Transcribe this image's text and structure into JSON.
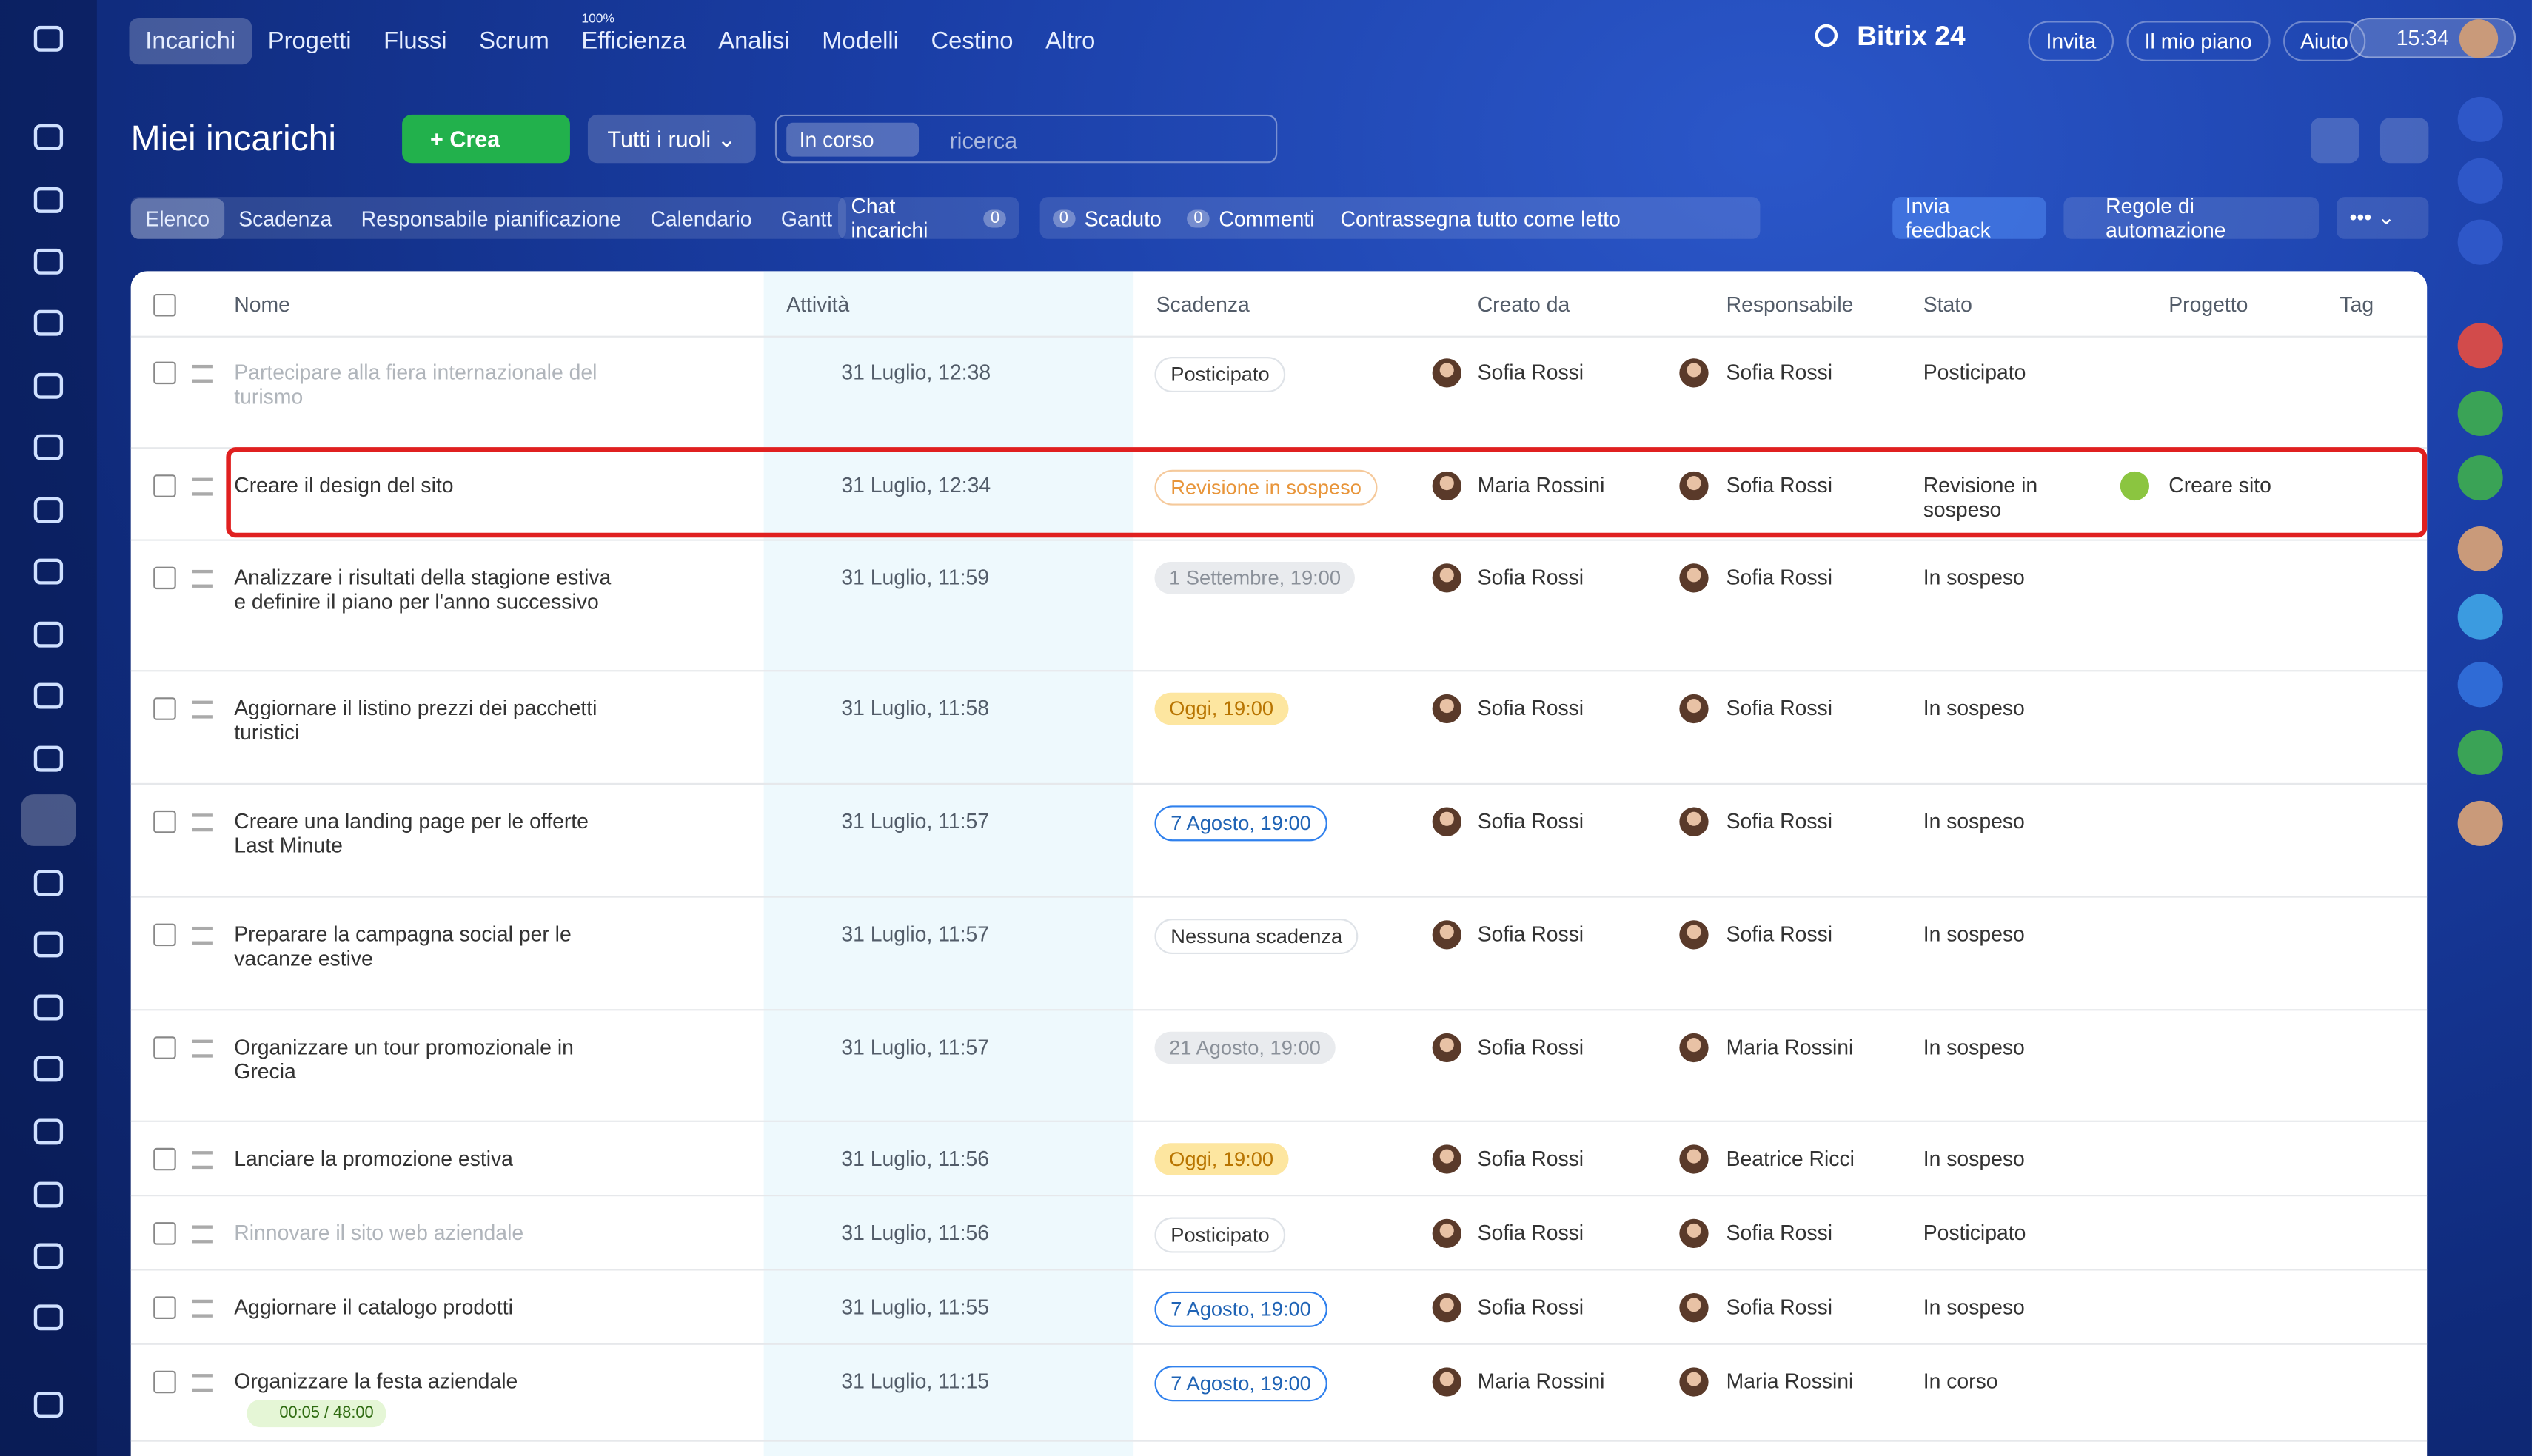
{
  "top_nav": {
    "items": [
      "Incarichi",
      "Progetti",
      "Flussi",
      "Scrum",
      "Efficienza",
      "Analisi",
      "Modelli",
      "Cestino",
      "Altro"
    ],
    "efficiency_badge": "100%",
    "brand": "Bitrix 24",
    "buttons": [
      "Invita",
      "Il mio piano",
      "Aiuto"
    ],
    "time": "15:34"
  },
  "header": {
    "title": "Miei incarichi",
    "create": "Crea",
    "roles": "Tutti i ruoli",
    "filter": "In corso",
    "search_placeholder": "ricerca"
  },
  "tabs": {
    "views": [
      "Elenco",
      "Scadenza",
      "Responsabile pianificazione",
      "Calendario",
      "Gantt"
    ],
    "chat": "Chat incarichi",
    "chat_count": 0,
    "expired_count": 0,
    "expired": "Scaduto",
    "comments_count": 0,
    "comments": "Commenti",
    "mark_read": "Contrassegna tutto come letto",
    "feedback": "Invia feedback",
    "automation": "Regole di automazione"
  },
  "table": {
    "columns": [
      "Nome",
      "Attività",
      "Scadenza",
      "Creato da",
      "Responsabile",
      "Stato",
      "Progetto",
      "Tag"
    ],
    "rows": [
      {
        "name": "Partecipare alla fiera internazionale del turismo",
        "activity": "31 Luglio, 12:38",
        "deadline": "Posticipato",
        "deadline_kind": "neutral",
        "created_by": "Sofia Rossi",
        "responsible": "Sofia Rossi",
        "status": "Posticipato",
        "muted": true
      },
      {
        "name": "Creare il design del sito",
        "activity": "31 Luglio, 12:34",
        "deadline": "Revisione in sospeso",
        "deadline_kind": "warning",
        "created_by": "Maria Rossini",
        "responsible": "Sofia Rossi",
        "status": "Revisione in sospeso",
        "project": "Creare sito",
        "highlighted": true
      },
      {
        "name": "Analizzare i risultati della stagione estiva e definire il piano per l'anno successivo",
        "activity": "31 Luglio, 11:59",
        "deadline": "1 Settembre, 19:00",
        "deadline_kind": "past",
        "created_by": "Sofia Rossi",
        "responsible": "Sofia Rossi",
        "status": "In sospeso"
      },
      {
        "name": "Aggiornare il listino prezzi dei pacchetti turistici",
        "activity": "31 Luglio, 11:58",
        "deadline": "Oggi, 19:00",
        "deadline_kind": "today",
        "created_by": "Sofia Rossi",
        "responsible": "Sofia Rossi",
        "status": "In sospeso"
      },
      {
        "name": "Creare una landing page per le offerte Last Minute",
        "activity": "31 Luglio, 11:57",
        "deadline": "7 Agosto, 19:00",
        "deadline_kind": "future",
        "created_by": "Sofia Rossi",
        "responsible": "Sofia Rossi",
        "status": "In sospeso"
      },
      {
        "name": "Preparare la campagna social per le vacanze estive",
        "activity": "31 Luglio, 11:57",
        "deadline": "Nessuna scadenza",
        "deadline_kind": "neutral",
        "created_by": "Sofia Rossi",
        "responsible": "Sofia Rossi",
        "status": "In sospeso"
      },
      {
        "name": "Organizzare un tour promozionale in Grecia",
        "activity": "31 Luglio, 11:57",
        "deadline": "21 Agosto, 19:00",
        "deadline_kind": "past",
        "created_by": "Sofia Rossi",
        "responsible": "Maria Rossini",
        "status": "In sospeso"
      },
      {
        "name": "Lanciare la promozione estiva",
        "activity": "31 Luglio, 11:56",
        "deadline": "Oggi, 19:00",
        "deadline_kind": "today",
        "created_by": "Sofia Rossi",
        "responsible": "Beatrice Ricci",
        "status": "In sospeso"
      },
      {
        "name": "Rinnovare il sito web aziendale",
        "activity": "31 Luglio, 11:56",
        "deadline": "Posticipato",
        "deadline_kind": "neutral",
        "created_by": "Sofia Rossi",
        "responsible": "Sofia Rossi",
        "status": "Posticipato",
        "muted": true
      },
      {
        "name": "Aggiornare il catalogo prodotti",
        "activity": "31 Luglio, 11:55",
        "deadline": "7 Agosto, 19:00",
        "deadline_kind": "future",
        "created_by": "Sofia Rossi",
        "responsible": "Sofia Rossi",
        "status": "In sospeso"
      },
      {
        "name": "Organizzare la festa aziendale",
        "activity": "31 Luglio, 11:15",
        "deadline": "7 Agosto, 19:00",
        "deadline_kind": "future",
        "created_by": "Maria Rossini",
        "responsible": "Maria Rossini",
        "status": "In corso",
        "timer": "00:05 / 48:00"
      }
    ]
  }
}
